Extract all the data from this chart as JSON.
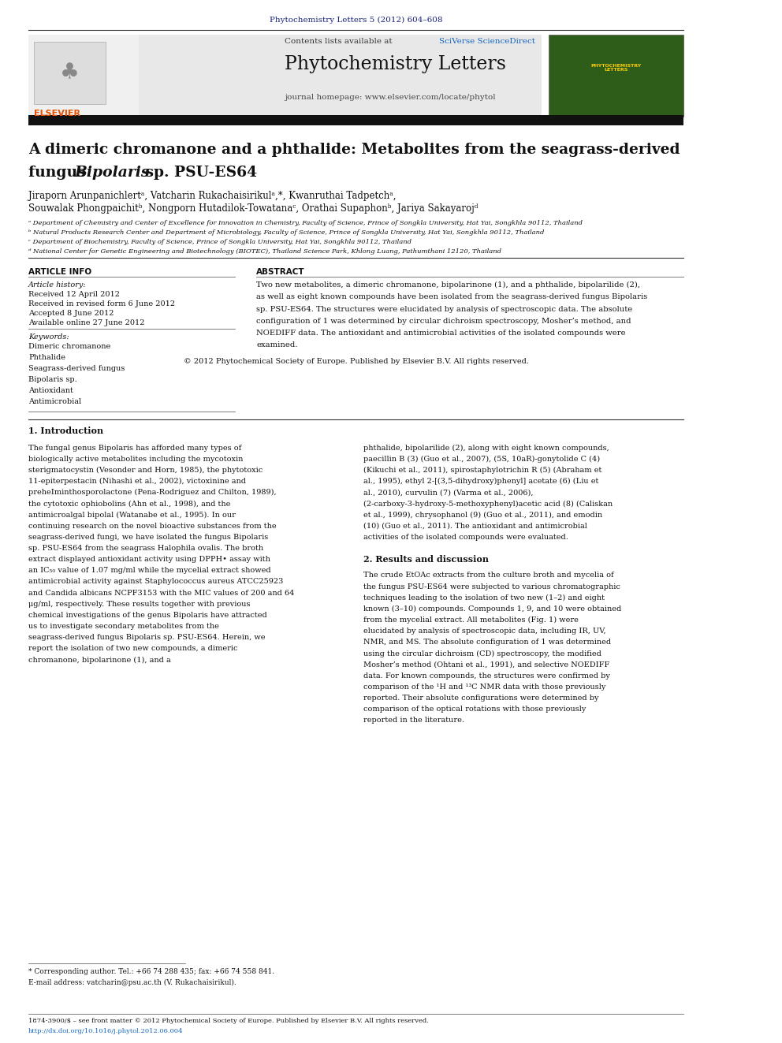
{
  "page_width": 9.92,
  "page_height": 13.23,
  "background_color": "#ffffff",
  "header_text": "Phytochemistry Letters 5 (2012) 604–608",
  "header_color": "#1a237e",
  "banner_bg": "#e8e8e8",
  "sciverse_color": "#1565c0",
  "journal_name": "Phytochemistry Letters",
  "journal_homepage": "journal homepage: www.elsevier.com/locate/phytol",
  "article_title_line1": "A dimeric chromanone and a phthalide: Metabolites from the seagrass-derived",
  "article_title_line2": "fungus ",
  "article_title_bipolaris": "Bipolaris",
  "article_title_line2b": " sp. PSU-ES64",
  "authors": "Jiraporn Arunpanichlertᵃ, Vatcharin Rukachaisirikulᵃ,*, Kwanruthai Tadpetchᵃ,",
  "authors2": "Souwalak Phongpaichitᵇ, Nongporn Hutadilok-Towatanaᶜ, Orathai Supaphonᵇ, Jariya Sakayarojᵈ",
  "affil_a": "ᵃ Department of Chemistry and Center of Excellence for Innovation in Chemistry, Faculty of Science, Prince of Songkla University, Hat Yai, Songkhla 90112, Thailand",
  "affil_b": "ᵇ Natural Products Research Center and Department of Microbiology, Faculty of Science, Prince of Songkla University, Hat Yai, Songkhla 90112, Thailand",
  "affil_c": "ᶜ Department of Biochemistry, Faculty of Science, Prince of Songkla University, Hat Yai, Songkhla 90112, Thailand",
  "affil_d": "ᵈ National Center for Genetic Engineering and Biotechnology (BIOTEC), Thailand Science Park, Khlong Luang, Pathumthani 12120, Thailand",
  "article_info_header": "ARTICLE INFO",
  "abstract_header": "ABSTRACT",
  "article_history_label": "Article history:",
  "received": "Received 12 April 2012",
  "revised": "Received in revised form 6 June 2012",
  "accepted": "Accepted 8 June 2012",
  "available": "Available online 27 June 2012",
  "keywords_label": "Keywords:",
  "keyword1": "Dimeric chromanone",
  "keyword2": "Phthalide",
  "keyword3": "Seagrass-derived fungus",
  "keyword4": "Bipolaris sp.",
  "keyword5": "Antioxidant",
  "keyword6": "Antimicrobial",
  "abstract_text": "Two new metabolites, a dimeric chromanone, bipolarinone (1), and a phthalide, bipolarilide (2), as well as eight known compounds have been isolated from the seagrass-derived fungus Bipolaris sp. PSU-ES64. The structures were elucidated by analysis of spectroscopic data. The absolute configuration of 1 was determined by circular dichroism spectroscopy, Mosher’s method, and NOEDIFF data. The antioxidant and antimicrobial activities of the isolated compounds were examined.",
  "copyright_text": "© 2012 Phytochemical Society of Europe. Published by Elsevier B.V. All rights reserved.",
  "section1_title": "1. Introduction",
  "section1_col1": "The fungal genus Bipolaris has afforded many types of biologically active metabolites including the mycotoxin sterigmatocystin (Vesonder and Horn, 1985), the phytotoxic 11-epiterpestacin (Nihashi et al., 2002), victoxinine and preheIminthosporolactone (Pena-Rodriguez and Chilton, 1989), the cytotoxic ophiobolins (Ahn et al., 1998), and the antimicroalgal bipolal (Watanabe et al., 1995). In our continuing research on the novel bioactive substances from the seagrass-derived fungi, we have isolated the fungus Bipolaris sp. PSU-ES64 from the seagrass Halophila ovalis. The broth extract displayed antioxidant activity using DPPH• assay with an IC₅₀ value of 1.07 mg/ml while the mycelial extract showed antimicrobial activity against Staphylococcus aureus ATCC25923 and Candida albicans NCPF3153 with the MIC values of 200 and 64 μg/ml, respectively. These results together with previous chemical investigations of the genus Bipolaris have attracted us to investigate secondary metabolites from the seagrass-derived fungus Bipolaris sp. PSU-ES64. Herein, we report the isolation of two new compounds, a dimeric chromanone, bipolarinone (1), and a",
  "section1_col2": "phthalide, bipolarilide (2), along with eight known compounds, paecillin B (3) (Guo et al., 2007), (5S, 10aR)-gonytolide C (4) (Kikuchi et al., 2011), spirostaphylotrichin R (5) (Abraham et al., 1995), ethyl 2-[(3,5-dihydroxy)phenyl] acetate (6) (Liu et al., 2010), curvulin (7) (Varma et al., 2006), (2-carboxy-3-hydroxy-5-methoxyphenyl)acetic acid (8) (Caliskan et al., 1999), chrysophanol (9) (Guo et al., 2011), and emodin (10) (Guo et al., 2011). The antioxidant and antimicrobial activities of the isolated compounds were evaluated.",
  "section2_title": "2. Results and discussion",
  "section2_col2": "The crude EtOAc extracts from the culture broth and mycelia of the fungus PSU-ES64 were subjected to various chromatographic techniques leading to the isolation of two new (1–2) and eight known (3–10) compounds. Compounds 1, 9, and 10 were obtained from the mycelial extract. All metabolites (Fig. 1) were elucidated by analysis of spectroscopic data, including IR, UV, NMR, and MS. The absolute configuration of 1 was determined using the circular dichroism (CD) spectroscopy, the modified Mosher’s method (Ohtani et al., 1991), and selective NOEDIFF data. For known compounds, the structures were confirmed by comparison of the ¹H and ¹³C NMR data with those previously reported. Their absolute configurations were determined by comparison of the optical rotations with those previously reported in the literature.",
  "footnote_corresponding": "* Corresponding author. Tel.: +66 74 288 435; fax: +66 74 558 841.",
  "footnote_email": "E-mail address: vatcharin@psu.ac.th (V. Rukachaisirikul).",
  "footer_text": "1874-3900/$ – see front matter © 2012 Phytochemical Society of Europe. Published by Elsevier B.V. All rights reserved.",
  "footer_doi": "http://dx.doi.org/10.1016/j.phytol.2012.06.004",
  "divider_color": "#333333",
  "link_color": "#1565c0"
}
